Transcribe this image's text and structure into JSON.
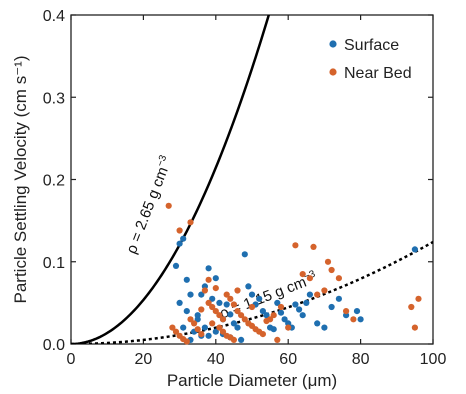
{
  "chart_data": {
    "type": "scatter",
    "xlabel": "Particle Diameter (μm)",
    "ylabel": "Particle Settling Velocity (cm s⁻¹)",
    "xlim": [
      0,
      100
    ],
    "ylim": [
      0,
      0.4
    ],
    "x_ticks": [
      "0",
      "20",
      "40",
      "60",
      "80",
      "100"
    ],
    "y_ticks": [
      "0.0",
      "0.1",
      "0.2",
      "0.3",
      "0.4"
    ],
    "x_tick_values": [
      0,
      20,
      40,
      60,
      80,
      100
    ],
    "y_tick_values": [
      0,
      0.1,
      0.2,
      0.3,
      0.4
    ],
    "grid": false,
    "legend_position": "top-right",
    "series": [
      {
        "name": "Surface",
        "color": "#1f6fb0",
        "points": [
          [
            30,
            0.122
          ],
          [
            31,
            0.128
          ],
          [
            29,
            0.095
          ],
          [
            32,
            0.078
          ],
          [
            33,
            0.06
          ],
          [
            30,
            0.05
          ],
          [
            32,
            0.04
          ],
          [
            35,
            0.03
          ],
          [
            31,
            0.02
          ],
          [
            34,
            0.015
          ],
          [
            36,
            0.01
          ],
          [
            33,
            0.005
          ],
          [
            38,
            0.092
          ],
          [
            40,
            0.08
          ],
          [
            37,
            0.07
          ],
          [
            36,
            0.06
          ],
          [
            39,
            0.055
          ],
          [
            41,
            0.05
          ],
          [
            43,
            0.048
          ],
          [
            44,
            0.036
          ],
          [
            42,
            0.03
          ],
          [
            45,
            0.025
          ],
          [
            46,
            0.02
          ],
          [
            40,
            0.015
          ],
          [
            38,
            0.01
          ],
          [
            44,
            0.008
          ],
          [
            47,
            0.005
          ],
          [
            48,
            0.109
          ],
          [
            49,
            0.07
          ],
          [
            50,
            0.06
          ],
          [
            52,
            0.055
          ],
          [
            51,
            0.048
          ],
          [
            53,
            0.04
          ],
          [
            54,
            0.035
          ],
          [
            55,
            0.02
          ],
          [
            56,
            0.018
          ],
          [
            57,
            0.05
          ],
          [
            58,
            0.038
          ],
          [
            59,
            0.03
          ],
          [
            60,
            0.025
          ],
          [
            61,
            0.02
          ],
          [
            62,
            0.048
          ],
          [
            63,
            0.042
          ],
          [
            64,
            0.035
          ],
          [
            65,
            0.05
          ],
          [
            66,
            0.06
          ],
          [
            68,
            0.025
          ],
          [
            70,
            0.02
          ],
          [
            72,
            0.045
          ],
          [
            74,
            0.055
          ],
          [
            76,
            0.035
          ],
          [
            79,
            0.04
          ],
          [
            80,
            0.03
          ],
          [
            95,
            0.115
          ],
          [
            35,
            0.035
          ],
          [
            37,
            0.02
          ],
          [
            42,
            0.012
          ]
        ]
      },
      {
        "name": "Near Bed",
        "color": "#d5632c",
        "points": [
          [
            27,
            0.168
          ],
          [
            33,
            0.148
          ],
          [
            30,
            0.138
          ],
          [
            28,
            0.02
          ],
          [
            29,
            0.015
          ],
          [
            30,
            0.01
          ],
          [
            31,
            0.006
          ],
          [
            32,
            0.003
          ],
          [
            34,
            0.025
          ],
          [
            35,
            0.018
          ],
          [
            36,
            0.012
          ],
          [
            33,
            0.03
          ],
          [
            37,
            0.065
          ],
          [
            38,
            0.05
          ],
          [
            39,
            0.045
          ],
          [
            40,
            0.04
          ],
          [
            41,
            0.035
          ],
          [
            42,
            0.03
          ],
          [
            40,
            0.068
          ],
          [
            43,
            0.06
          ],
          [
            44,
            0.055
          ],
          [
            45,
            0.048
          ],
          [
            46,
            0.04
          ],
          [
            47,
            0.035
          ],
          [
            48,
            0.03
          ],
          [
            39,
            0.025
          ],
          [
            41,
            0.02
          ],
          [
            42,
            0.015
          ],
          [
            43,
            0.01
          ],
          [
            44,
            0.008
          ],
          [
            45,
            0.005
          ],
          [
            49,
            0.025
          ],
          [
            50,
            0.022
          ],
          [
            51,
            0.018
          ],
          [
            52,
            0.015
          ],
          [
            53,
            0.012
          ],
          [
            54,
            0.028
          ],
          [
            55,
            0.03
          ],
          [
            56,
            0.035
          ],
          [
            58,
            0.045
          ],
          [
            60,
            0.02
          ],
          [
            62,
            0.12
          ],
          [
            64,
            0.085
          ],
          [
            66,
            0.08
          ],
          [
            68,
            0.06
          ],
          [
            70,
            0.065
          ],
          [
            71,
            0.1
          ],
          [
            72,
            0.09
          ],
          [
            67,
            0.118
          ],
          [
            74,
            0.08
          ],
          [
            76,
            0.04
          ],
          [
            78,
            0.03
          ],
          [
            94,
            0.045
          ],
          [
            95,
            0.02
          ],
          [
            96,
            0.055
          ],
          [
            38,
            0.078
          ],
          [
            46,
            0.065
          ],
          [
            50,
            0.045
          ],
          [
            57,
            0.005
          ],
          [
            36,
            0.042
          ]
        ]
      }
    ],
    "curves": [
      {
        "label_rho": "ρ = 2.65 g cm",
        "label_exp": "−3",
        "style": "solid",
        "density": 2.65,
        "coef": 0.000134
      },
      {
        "label_rho": "ρ = 1.15 g cm",
        "label_exp": "−3",
        "style": "dotted",
        "density": 1.15,
        "coef": 1.24e-05
      }
    ]
  }
}
